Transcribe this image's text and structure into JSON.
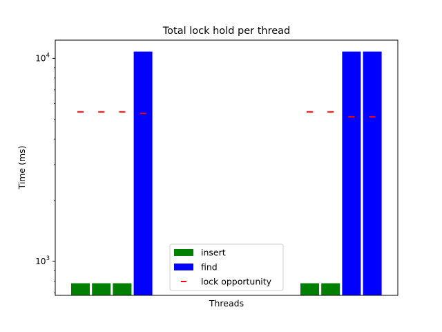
{
  "chart_data": {
    "type": "bar",
    "title": "Total lock hold per thread",
    "xlabel": "Threads",
    "ylabel": "Time (ms)",
    "yscale": "log",
    "ylim": [
      680,
      12300
    ],
    "yticks": [
      {
        "value": 1000,
        "base": "10",
        "exp": "3"
      },
      {
        "value": 10000,
        "base": "10",
        "exp": "4"
      }
    ],
    "grid": false,
    "legend_position": "lower center",
    "groups": [
      {
        "bars": [
          {
            "series": "insert",
            "value": 780,
            "lock_opportunity": 5450
          },
          {
            "series": "insert",
            "value": 780,
            "lock_opportunity": 5450
          },
          {
            "series": "insert",
            "value": 780,
            "lock_opportunity": 5450
          },
          {
            "series": "find",
            "value": 10800,
            "lock_opportunity": 5350
          }
        ]
      },
      {
        "bars": [
          {
            "series": "insert",
            "value": 780,
            "lock_opportunity": 5450
          },
          {
            "series": "insert",
            "value": 780,
            "lock_opportunity": 5450
          },
          {
            "series": "find",
            "value": 10800,
            "lock_opportunity": 5150
          },
          {
            "series": "find",
            "value": 10800,
            "lock_opportunity": 5150
          }
        ]
      }
    ],
    "legend": [
      {
        "label": "insert",
        "kind": "bar",
        "color": "#008000"
      },
      {
        "label": "find",
        "kind": "bar",
        "color": "#0000ff"
      },
      {
        "label": "lock opportunity",
        "kind": "dash",
        "color": "#ff0000"
      }
    ],
    "colors": {
      "insert": "#008000",
      "find": "#0000ff",
      "lock_opportunity": "#ff0000"
    }
  }
}
